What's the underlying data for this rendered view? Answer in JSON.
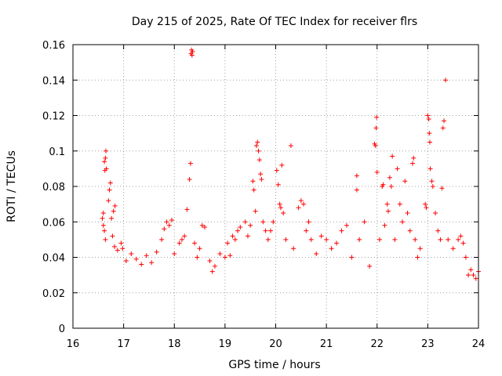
{
  "chart_data": {
    "type": "scatter",
    "title": "Day 215 of 2025, Rate Of TEC Index for receiver flrs",
    "xlabel": "GPS time / hours",
    "ylabel": "ROTI / TECUs",
    "xlim": [
      16,
      24
    ],
    "ylim": [
      0,
      0.16
    ],
    "x_ticks": [
      16,
      17,
      18,
      19,
      20,
      21,
      22,
      23,
      24
    ],
    "x_tick_labels": [
      "16",
      "17",
      "18",
      "19",
      "20",
      "21",
      "22",
      "23",
      "24"
    ],
    "y_ticks": [
      0,
      0.02,
      0.04,
      0.06,
      0.08,
      0.1,
      0.12,
      0.14,
      0.16
    ],
    "y_tick_labels": [
      "0",
      "0.02",
      "0.04",
      "0.06",
      "0.08",
      "0.1",
      "0.12",
      "0.14",
      "0.16"
    ],
    "grid": true,
    "marker": "plus",
    "color": "#ff0000",
    "series": [
      {
        "name": "ROTI",
        "points": [
          [
            16.58,
            0.062
          ],
          [
            16.6,
            0.065
          ],
          [
            16.62,
            0.094
          ],
          [
            16.63,
            0.089
          ],
          [
            16.64,
            0.096
          ],
          [
            16.65,
            0.1
          ],
          [
            16.66,
            0.09
          ],
          [
            16.6,
            0.058
          ],
          [
            16.62,
            0.055
          ],
          [
            16.64,
            0.05
          ],
          [
            16.7,
            0.072
          ],
          [
            16.72,
            0.078
          ],
          [
            16.74,
            0.082
          ],
          [
            16.76,
            0.062
          ],
          [
            16.8,
            0.066
          ],
          [
            16.83,
            0.069
          ],
          [
            16.78,
            0.052
          ],
          [
            16.82,
            0.046
          ],
          [
            16.88,
            0.044
          ],
          [
            16.95,
            0.048
          ],
          [
            16.98,
            0.045
          ],
          [
            17.05,
            0.038
          ],
          [
            17.15,
            0.042
          ],
          [
            17.25,
            0.039
          ],
          [
            17.35,
            0.036
          ],
          [
            17.45,
            0.041
          ],
          [
            17.55,
            0.037
          ],
          [
            17.65,
            0.043
          ],
          [
            17.75,
            0.05
          ],
          [
            17.8,
            0.056
          ],
          [
            17.85,
            0.06
          ],
          [
            17.9,
            0.058
          ],
          [
            17.95,
            0.061
          ],
          [
            18.0,
            0.042
          ],
          [
            18.1,
            0.048
          ],
          [
            18.15,
            0.05
          ],
          [
            18.2,
            0.052
          ],
          [
            18.25,
            0.067
          ],
          [
            18.3,
            0.084
          ],
          [
            18.32,
            0.093
          ],
          [
            18.33,
            0.155
          ],
          [
            18.34,
            0.157
          ],
          [
            18.35,
            0.154
          ],
          [
            18.36,
            0.156
          ],
          [
            18.4,
            0.048
          ],
          [
            18.45,
            0.04
          ],
          [
            18.5,
            0.045
          ],
          [
            18.55,
            0.058
          ],
          [
            18.6,
            0.057
          ],
          [
            18.7,
            0.038
          ],
          [
            18.75,
            0.032
          ],
          [
            18.8,
            0.035
          ],
          [
            18.9,
            0.042
          ],
          [
            19.0,
            0.04
          ],
          [
            19.05,
            0.048
          ],
          [
            19.1,
            0.041
          ],
          [
            19.15,
            0.052
          ],
          [
            19.2,
            0.05
          ],
          [
            19.25,
            0.055
          ],
          [
            19.3,
            0.057
          ],
          [
            19.4,
            0.06
          ],
          [
            19.45,
            0.052
          ],
          [
            19.5,
            0.058
          ],
          [
            19.55,
            0.083
          ],
          [
            19.57,
            0.078
          ],
          [
            19.6,
            0.066
          ],
          [
            19.62,
            0.103
          ],
          [
            19.64,
            0.105
          ],
          [
            19.66,
            0.1
          ],
          [
            19.68,
            0.095
          ],
          [
            19.7,
            0.087
          ],
          [
            19.72,
            0.084
          ],
          [
            19.75,
            0.06
          ],
          [
            19.8,
            0.055
          ],
          [
            19.85,
            0.05
          ],
          [
            19.9,
            0.055
          ],
          [
            19.95,
            0.06
          ],
          [
            20.02,
            0.089
          ],
          [
            20.05,
            0.081
          ],
          [
            20.08,
            0.07
          ],
          [
            20.1,
            0.068
          ],
          [
            20.12,
            0.092
          ],
          [
            20.15,
            0.065
          ],
          [
            20.2,
            0.05
          ],
          [
            20.3,
            0.103
          ],
          [
            20.35,
            0.045
          ],
          [
            20.45,
            0.068
          ],
          [
            20.5,
            0.072
          ],
          [
            20.55,
            0.07
          ],
          [
            20.6,
            0.055
          ],
          [
            20.65,
            0.06
          ],
          [
            20.7,
            0.05
          ],
          [
            20.8,
            0.042
          ],
          [
            20.9,
            0.052
          ],
          [
            21.0,
            0.05
          ],
          [
            21.1,
            0.045
          ],
          [
            21.2,
            0.048
          ],
          [
            21.3,
            0.055
          ],
          [
            21.4,
            0.058
          ],
          [
            21.5,
            0.04
          ],
          [
            21.6,
            0.086
          ],
          [
            21.6,
            0.078
          ],
          [
            21.65,
            0.05
          ],
          [
            21.75,
            0.06
          ],
          [
            21.85,
            0.035
          ],
          [
            21.95,
            0.104
          ],
          [
            21.97,
            0.103
          ],
          [
            21.98,
            0.113
          ],
          [
            21.99,
            0.119
          ],
          [
            22.0,
            0.088
          ],
          [
            22.05,
            0.05
          ],
          [
            22.1,
            0.08
          ],
          [
            22.12,
            0.081
          ],
          [
            22.15,
            0.058
          ],
          [
            22.2,
            0.07
          ],
          [
            22.22,
            0.066
          ],
          [
            22.25,
            0.085
          ],
          [
            22.28,
            0.08
          ],
          [
            22.3,
            0.097
          ],
          [
            22.35,
            0.05
          ],
          [
            22.4,
            0.09
          ],
          [
            22.45,
            0.07
          ],
          [
            22.5,
            0.06
          ],
          [
            22.55,
            0.083
          ],
          [
            22.6,
            0.065
          ],
          [
            22.65,
            0.055
          ],
          [
            22.7,
            0.093
          ],
          [
            22.72,
            0.096
          ],
          [
            22.75,
            0.05
          ],
          [
            22.8,
            0.04
          ],
          [
            22.85,
            0.045
          ],
          [
            22.95,
            0.07
          ],
          [
            22.97,
            0.068
          ],
          [
            23.0,
            0.12
          ],
          [
            23.02,
            0.118
          ],
          [
            23.03,
            0.11
          ],
          [
            23.04,
            0.105
          ],
          [
            23.05,
            0.09
          ],
          [
            23.08,
            0.083
          ],
          [
            23.1,
            0.08
          ],
          [
            23.15,
            0.065
          ],
          [
            23.2,
            0.055
          ],
          [
            23.25,
            0.05
          ],
          [
            23.28,
            0.079
          ],
          [
            23.3,
            0.113
          ],
          [
            23.32,
            0.117
          ],
          [
            23.35,
            0.14
          ],
          [
            23.4,
            0.05
          ],
          [
            23.5,
            0.045
          ],
          [
            23.6,
            0.05
          ],
          [
            23.65,
            0.052
          ],
          [
            23.7,
            0.048
          ],
          [
            23.75,
            0.04
          ],
          [
            23.8,
            0.03
          ],
          [
            23.85,
            0.033
          ],
          [
            23.9,
            0.03
          ],
          [
            23.95,
            0.028
          ],
          [
            24.0,
            0.032
          ]
        ]
      }
    ]
  }
}
